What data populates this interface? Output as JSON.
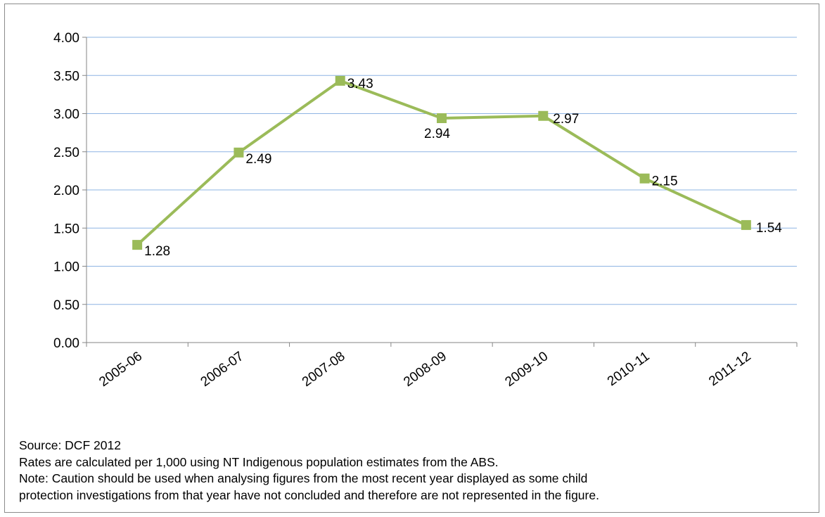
{
  "chart_data": {
    "type": "line",
    "title": "",
    "xlabel": "",
    "ylabel": "",
    "categories": [
      "2005-06",
      "2006-07",
      "2007-08",
      "2008-09",
      "2009-10",
      "2010-11",
      "2011-12"
    ],
    "series": [
      {
        "values": [
          1.28,
          2.49,
          3.43,
          2.94,
          2.97,
          2.15,
          1.54
        ],
        "color": "#9bbb59"
      }
    ],
    "data_labels": [
      "1.28",
      "2.49",
      "3.43",
      "2.94",
      "2.97",
      "2.15",
      "1.54"
    ],
    "ylim": [
      0,
      4
    ],
    "yticks": [
      "0.00",
      "0.50",
      "1.00",
      "1.50",
      "2.00",
      "2.50",
      "3.00",
      "3.50",
      "4.00"
    ],
    "grid": true,
    "gridline_color": "#8eb4e3",
    "legend": "none"
  },
  "notes": {
    "source": "Source: DCF 2012",
    "rates": "Rates are calculated per 1,000 using NT Indigenous population estimates from  the ABS.",
    "caution_line1": "Note: Caution should be used when analysing figures from the most recent year displayed as some child",
    "caution_line2": "protection investigations from that year have not concluded and therefore are not represented in the figure."
  }
}
